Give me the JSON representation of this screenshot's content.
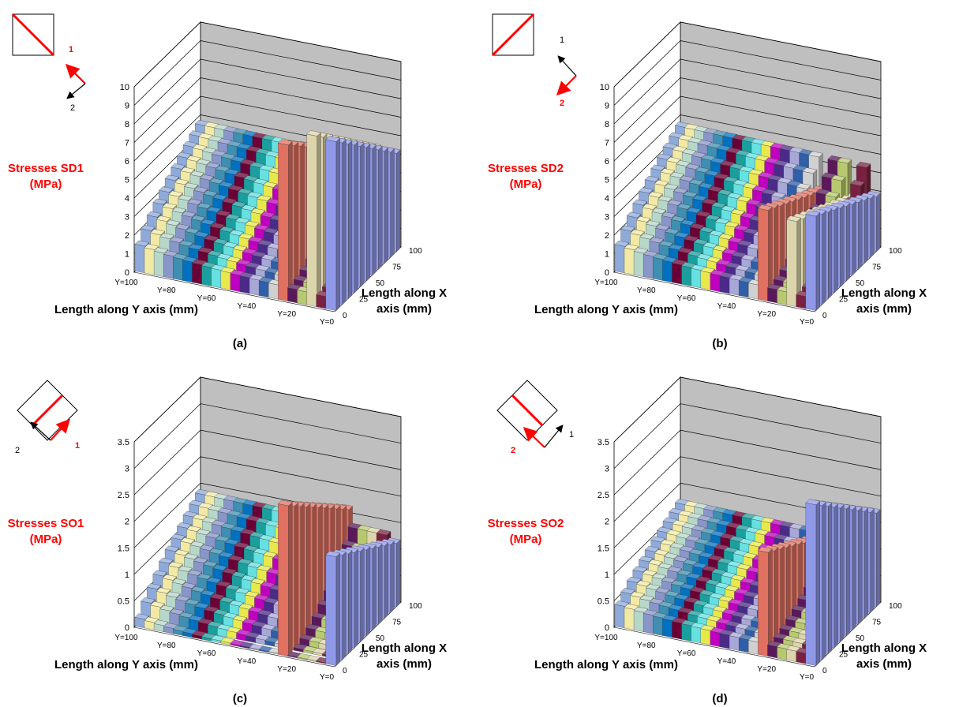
{
  "colors": {
    "wall": "#bfbfbf",
    "grid": "#000000",
    "highlight": "#ff0000",
    "series_palette": [
      "#8eaadb",
      "#f1e9a4",
      "#b7d7c9",
      "#8896c8",
      "#3e8fb1",
      "#0070c0",
      "#6b0036",
      "#1b9e9e",
      "#66e0e0",
      "#e8e84a",
      "#c000c0",
      "#4b2b8a",
      "#a8a8d8",
      "#2e5fa8",
      "#d0d0d0",
      "#e07060",
      "#5a1a5a",
      "#b8c870",
      "#dcd4aa",
      "#7a2040",
      "#9098e8"
    ]
  },
  "chart_data": [
    {
      "type": "bar3d",
      "panel": "a",
      "caption": "(a)",
      "ztitle_line1": "Stresses SD1",
      "ztitle_line2": "(MPa)",
      "zticks": [
        "0",
        "1",
        "2",
        "3",
        "4",
        "5",
        "6",
        "7",
        "8",
        "9",
        "10"
      ],
      "zlim": [
        0,
        10
      ],
      "yticks": [
        "Y=100",
        "Y=80",
        "Y=60",
        "Y=40",
        "Y=20",
        "Y=0"
      ],
      "xticks": [
        "0",
        "25",
        "50",
        "75",
        "100"
      ],
      "ylabel": "Length along Y axis (mm)",
      "xlabel_line1": "Length along X",
      "xlabel_line2": "axis (mm)",
      "icon": "diag-down",
      "arrow_red": "1",
      "arrow_black": "2",
      "profile": {
        "base": 1.0,
        "peak": 4.9,
        "spike_rows": [
          15,
          18,
          20
        ],
        "spike_values": [
          8.6,
          9.4,
          9.3
        ]
      }
    },
    {
      "type": "bar3d",
      "panel": "b",
      "caption": "(b)",
      "ztitle_line1": "Stresses SD2",
      "ztitle_line2": "(MPa)",
      "zticks": [
        "0",
        "1",
        "2",
        "3",
        "4",
        "5",
        "6",
        "7",
        "8",
        "9",
        "10"
      ],
      "zlim": [
        0,
        10
      ],
      "yticks": [
        "Y=100",
        "Y=80",
        "Y=60",
        "Y=40",
        "Y=20",
        "Y=0"
      ],
      "xticks": [
        "0",
        "25",
        "50",
        "75",
        "100"
      ],
      "ylabel": "Length along Y axis (mm)",
      "xlabel_line1": "Length along X",
      "xlabel_line2": "axis (mm)",
      "icon": "diag-up",
      "arrow_red": "2",
      "arrow_black": "1",
      "profile": {
        "base": 1.0,
        "peak": 4.8,
        "spike_rows": [
          15,
          18,
          20
        ],
        "spike_values": [
          5.0,
          4.7,
          5.2
        ]
      }
    },
    {
      "type": "bar3d",
      "panel": "c",
      "caption": "(c)",
      "ztitle_line1": "Stresses SO1",
      "ztitle_line2": "(MPa)",
      "zticks": [
        "0",
        "0.5",
        "1",
        "1.5",
        "2",
        "2.5",
        "3",
        "3.5"
      ],
      "zlim": [
        0,
        3.5
      ],
      "yticks": [
        "Y=100",
        "Y=80",
        "Y=60",
        "Y=40",
        "Y=20",
        "Y=0"
      ],
      "xticks": [
        "0",
        "25",
        "50",
        "75",
        "100"
      ],
      "ylabel": "Length along Y axis (mm)",
      "xlabel_line1": "Length along X",
      "xlabel_line2": "axis (mm)",
      "icon": "diamond-line-a",
      "arrow_red": "1",
      "arrow_black": "2",
      "profile": {
        "base": 0.0,
        "peak": 1.45,
        "spike_rows": [
          15,
          20
        ],
        "spike_values": [
          2.9,
          2.1
        ]
      }
    },
    {
      "type": "bar3d",
      "panel": "d",
      "caption": "(d)",
      "ztitle_line1": "Stresses SO2",
      "ztitle_line2": "(MPa)",
      "zticks": [
        "0",
        "0.5",
        "1",
        "1.5",
        "2",
        "2.5",
        "3",
        "3.5"
      ],
      "zlim": [
        0,
        3.5
      ],
      "yticks": [
        "Y=100",
        "Y=80",
        "Y=60",
        "Y=40",
        "Y=20",
        "Y=0"
      ],
      "xticks": [
        "0",
        "25",
        "50",
        "75",
        "100"
      ],
      "ylabel": "Length along Y axis (mm)",
      "xlabel_line1": "Length along X",
      "xlabel_line2": "axis (mm)",
      "icon": "diamond-line-b",
      "arrow_red": "2",
      "arrow_black": "1",
      "profile": {
        "base": 0.3,
        "peak": 1.25,
        "spike_rows": [
          15,
          20
        ],
        "spike_values": [
          2.0,
          3.1
        ]
      }
    }
  ]
}
